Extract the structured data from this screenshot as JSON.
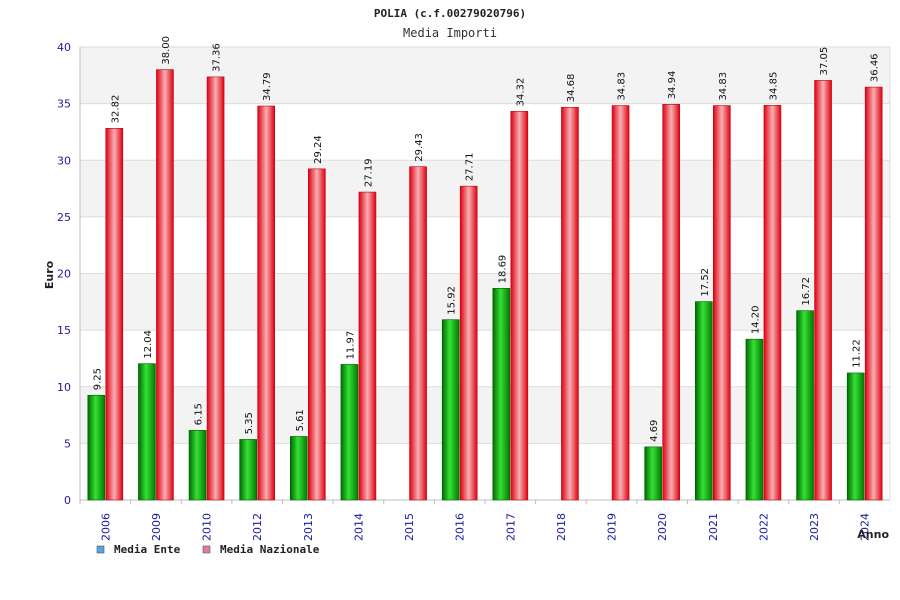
{
  "chart_data": {
    "type": "bar",
    "title": "POLIA (c.f.00279020796)",
    "subtitle": "Media Importi",
    "xlabel": "Anno",
    "ylabel": "Euro",
    "ylim": [
      0,
      40
    ],
    "yticks": [
      "0",
      "5",
      "10",
      "15",
      "20",
      "25",
      "30",
      "35",
      "40"
    ],
    "grid": true,
    "legend_position": "bottom-left",
    "categories": [
      "2006",
      "2009",
      "2010",
      "2012",
      "2013",
      "2014",
      "2015",
      "2016",
      "2017",
      "2018",
      "2019",
      "2020",
      "2021",
      "2022",
      "2023",
      "2024"
    ],
    "series": [
      {
        "name": "Media Ente",
        "color": "#00b000",
        "legend_color": "#5aa0e6",
        "values": [
          9.25,
          12.04,
          6.15,
          5.35,
          5.61,
          11.97,
          null,
          15.92,
          18.69,
          null,
          null,
          4.69,
          17.52,
          14.2,
          16.72,
          11.22
        ],
        "labels": [
          "9.25",
          "12.04",
          "6.15",
          "5.35",
          "5.61",
          "11.97",
          "",
          "15.92",
          "18.69",
          "",
          "",
          "4.69",
          "17.52",
          "14.20",
          "16.72",
          "11.22"
        ]
      },
      {
        "name": "Media Nazionale",
        "color": "#e8101c",
        "legend_color": "#e07aa8",
        "values": [
          32.82,
          38.0,
          37.36,
          34.79,
          29.24,
          27.19,
          29.43,
          27.71,
          34.32,
          34.68,
          34.83,
          34.94,
          34.83,
          34.85,
          37.05,
          36.46
        ],
        "labels": [
          "32.82",
          "38.00",
          "37.36",
          "34.79",
          "29.24",
          "27.19",
          "29.43",
          "27.71",
          "34.32",
          "34.68",
          "34.83",
          "34.94",
          "34.83",
          "34.85",
          "37.05",
          "36.46"
        ]
      }
    ]
  }
}
